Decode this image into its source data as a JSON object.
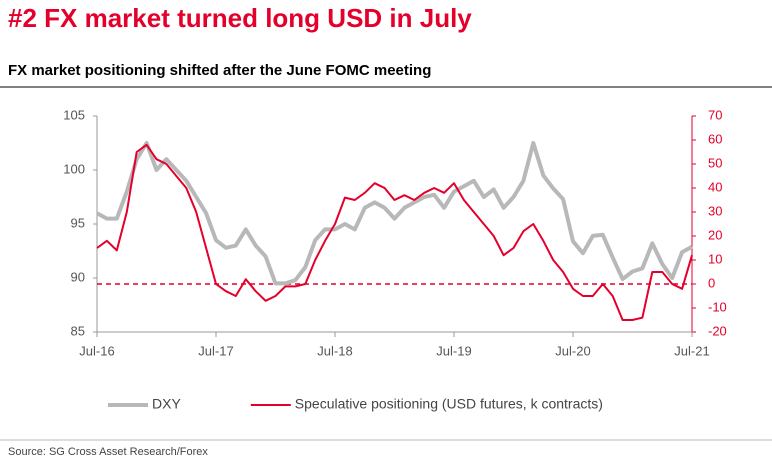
{
  "chart_data": {
    "type": "line",
    "title": "#2 FX market turned long USD in July",
    "subtitle": "FX market positioning shifted after the June FOMC meeting",
    "source": "Source: SG Cross Asset Research/Forex",
    "categories": [
      "Jul-16",
      null,
      null,
      null,
      null,
      null,
      null,
      null,
      null,
      null,
      null,
      null,
      "Jul-17",
      null,
      null,
      null,
      null,
      null,
      null,
      null,
      null,
      null,
      null,
      null,
      "Jul-18",
      null,
      null,
      null,
      null,
      null,
      null,
      null,
      null,
      null,
      null,
      null,
      "Jul-19",
      null,
      null,
      null,
      null,
      null,
      null,
      null,
      null,
      null,
      null,
      null,
      "Jul-20",
      null,
      null,
      null,
      null,
      null,
      null,
      null,
      null,
      null,
      null,
      null,
      "Jul-21"
    ],
    "series": [
      {
        "name": "DXY",
        "color": "#b8b8b8",
        "axis": "y",
        "values": [
          96,
          95.5,
          95.5,
          98,
          101,
          102.5,
          100,
          101,
          100,
          99,
          97.5,
          96,
          93.5,
          92.8,
          93,
          94.5,
          93,
          92,
          89.5,
          89.5,
          89.8,
          91,
          93.5,
          94.5,
          94.5,
          95,
          94.5,
          96.5,
          97,
          96.5,
          95.5,
          96.5,
          97,
          97.5,
          97.7,
          96.5,
          98,
          98.5,
          99,
          97.5,
          98.2,
          96.5,
          97.5,
          99,
          102.5,
          99.5,
          98.3,
          97.3,
          93.4,
          92.3,
          93.9,
          94,
          91.9,
          89.9,
          90.6,
          90.9,
          93.2,
          91.3,
          90,
          92.4,
          92.9
        ]
      },
      {
        "name": "Speculative positioning (USD futures, k contracts)",
        "color": "#e4002b",
        "axis": "y2",
        "values": [
          15,
          18,
          14,
          30,
          55,
          58,
          52,
          50,
          45,
          40,
          30,
          15,
          0,
          -3,
          -5,
          2,
          -3,
          -7,
          -5,
          -1,
          -1,
          0,
          10,
          18,
          25,
          36,
          35,
          38,
          42,
          40,
          35,
          37,
          35,
          38,
          40,
          38,
          42,
          35,
          30,
          25,
          20,
          12,
          15,
          22,
          25,
          18,
          10,
          5,
          -2,
          -5,
          -5,
          0,
          -5,
          -15,
          -15,
          -14,
          5,
          5,
          0,
          -2,
          12
        ]
      }
    ],
    "ylim": [
      85,
      105
    ],
    "yticks": [
      85,
      90,
      95,
      100,
      105
    ],
    "y2lim": [
      -20,
      70
    ],
    "y2ticks": [
      -20,
      -10,
      0,
      10,
      20,
      30,
      40,
      50,
      60,
      70
    ],
    "y2color": "#e4002b",
    "reference_line": {
      "axis": "y2",
      "value": 0,
      "color": "#e4002b",
      "style": "dashed"
    },
    "legend": "bottom"
  }
}
